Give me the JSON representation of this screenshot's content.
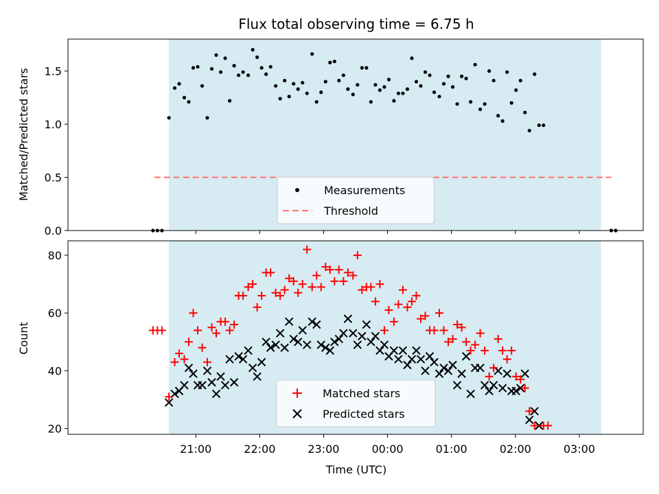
{
  "colors": {
    "shade": "#add8e6",
    "measurement": "#000000",
    "threshold": "#ff7070",
    "matched": "#ff0000",
    "predicted": "#000000"
  },
  "x_axis": {
    "label": "Time (UTC)",
    "ticks": [
      "21:00",
      "22:00",
      "23:00",
      "00:00",
      "01:00",
      "02:00",
      "03:00"
    ]
  },
  "chart_data": [
    {
      "type": "scatter",
      "title": "Flux total observing time = 6.75 h",
      "xlabel": "",
      "ylabel": "Matched/Predicted stars",
      "x_unit": "hours after 20:00 UTC",
      "xlim": [
        -1.0,
        8.0
      ],
      "ylim": [
        0.0,
        1.8
      ],
      "yticks": [
        "0.0",
        "0.5",
        "1.0",
        "1.5"
      ],
      "shaded_span": [
        0.58,
        7.34
      ],
      "threshold": 0.5,
      "threshold_span": [
        0.35,
        7.5
      ],
      "legend": [
        "Measurements",
        "Threshold"
      ],
      "series": [
        {
          "name": "Measurements",
          "values": [
            [
              0.33,
              0.0
            ],
            [
              0.4,
              0.0
            ],
            [
              0.47,
              0.0
            ],
            [
              0.58,
              1.06
            ],
            [
              0.67,
              1.34
            ],
            [
              0.74,
              1.38
            ],
            [
              0.82,
              1.25
            ],
            [
              0.89,
              1.21
            ],
            [
              0.96,
              1.53
            ],
            [
              1.03,
              1.54
            ],
            [
              1.1,
              1.36
            ],
            [
              1.18,
              1.06
            ],
            [
              1.25,
              1.52
            ],
            [
              1.32,
              1.65
            ],
            [
              1.39,
              1.49
            ],
            [
              1.46,
              1.62
            ],
            [
              1.53,
              1.22
            ],
            [
              1.6,
              1.55
            ],
            [
              1.67,
              1.46
            ],
            [
              1.74,
              1.49
            ],
            [
              1.82,
              1.46
            ],
            [
              1.89,
              1.7
            ],
            [
              1.96,
              1.63
            ],
            [
              2.03,
              1.53
            ],
            [
              2.1,
              1.47
            ],
            [
              2.17,
              1.54
            ],
            [
              2.25,
              1.36
            ],
            [
              2.32,
              1.24
            ],
            [
              2.39,
              1.41
            ],
            [
              2.46,
              1.26
            ],
            [
              2.53,
              1.38
            ],
            [
              2.6,
              1.33
            ],
            [
              2.67,
              1.39
            ],
            [
              2.74,
              1.29
            ],
            [
              2.82,
              1.66
            ],
            [
              2.89,
              1.21
            ],
            [
              2.96,
              1.3
            ],
            [
              3.03,
              1.4
            ],
            [
              3.1,
              1.58
            ],
            [
              3.17,
              1.59
            ],
            [
              3.24,
              1.41
            ],
            [
              3.31,
              1.46
            ],
            [
              3.38,
              1.33
            ],
            [
              3.46,
              1.28
            ],
            [
              3.53,
              1.37
            ],
            [
              3.6,
              1.53
            ],
            [
              3.67,
              1.53
            ],
            [
              3.74,
              1.21
            ],
            [
              3.81,
              1.37
            ],
            [
              3.88,
              1.32
            ],
            [
              3.95,
              1.35
            ],
            [
              4.02,
              1.42
            ],
            [
              4.1,
              1.22
            ],
            [
              4.17,
              1.29
            ],
            [
              4.24,
              1.29
            ],
            [
              4.31,
              1.33
            ],
            [
              4.38,
              1.62
            ],
            [
              4.45,
              1.4
            ],
            [
              4.52,
              1.36
            ],
            [
              4.59,
              1.49
            ],
            [
              4.66,
              1.46
            ],
            [
              4.73,
              1.3
            ],
            [
              4.81,
              1.26
            ],
            [
              4.88,
              1.38
            ],
            [
              4.95,
              1.45
            ],
            [
              5.02,
              1.35
            ],
            [
              5.09,
              1.19
            ],
            [
              5.16,
              1.45
            ],
            [
              5.23,
              1.43
            ],
            [
              5.3,
              1.21
            ],
            [
              5.37,
              1.56
            ],
            [
              5.45,
              1.14
            ],
            [
              5.52,
              1.19
            ],
            [
              5.59,
              1.5
            ],
            [
              5.66,
              1.41
            ],
            [
              5.73,
              1.08
            ],
            [
              5.8,
              1.03
            ],
            [
              5.87,
              1.49
            ],
            [
              5.94,
              1.2
            ],
            [
              6.01,
              1.32
            ],
            [
              6.08,
              1.41
            ],
            [
              6.15,
              1.11
            ],
            [
              6.22,
              0.94
            ],
            [
              6.3,
              1.47
            ],
            [
              6.37,
              0.99
            ],
            [
              6.44,
              0.99
            ],
            [
              7.5,
              0.0
            ],
            [
              7.57,
              0.0
            ]
          ]
        },
        {
          "name": "Threshold",
          "values": [
            [
              0.35,
              0.5
            ],
            [
              7.5,
              0.5
            ]
          ]
        }
      ]
    },
    {
      "type": "scatter",
      "title": "",
      "xlabel": "Time (UTC)",
      "ylabel": "Count",
      "x_unit": "hours after 20:00 UTC",
      "xlim": [
        -1.0,
        8.0
      ],
      "ylim": [
        18,
        85
      ],
      "yticks": [
        "20",
        "40",
        "60",
        "80"
      ],
      "shaded_span": [
        0.58,
        7.34
      ],
      "legend": [
        "Matched stars",
        "Predicted stars"
      ],
      "series": [
        {
          "name": "Matched stars",
          "values": [
            [
              0.33,
              54
            ],
            [
              0.4,
              54
            ],
            [
              0.47,
              54
            ],
            [
              0.58,
              31
            ],
            [
              0.67,
              43
            ],
            [
              0.74,
              46
            ],
            [
              0.82,
              44
            ],
            [
              0.89,
              50
            ],
            [
              0.96,
              60
            ],
            [
              1.03,
              54
            ],
            [
              1.1,
              48
            ],
            [
              1.18,
              43
            ],
            [
              1.25,
              55
            ],
            [
              1.32,
              53
            ],
            [
              1.39,
              57
            ],
            [
              1.46,
              57
            ],
            [
              1.53,
              54
            ],
            [
              1.6,
              56
            ],
            [
              1.67,
              66
            ],
            [
              1.74,
              66
            ],
            [
              1.82,
              69
            ],
            [
              1.89,
              70
            ],
            [
              1.96,
              62
            ],
            [
              2.03,
              66
            ],
            [
              2.1,
              74
            ],
            [
              2.17,
              74
            ],
            [
              2.25,
              67
            ],
            [
              2.32,
              66
            ],
            [
              2.39,
              68
            ],
            [
              2.46,
              72
            ],
            [
              2.53,
              71
            ],
            [
              2.6,
              67
            ],
            [
              2.67,
              70
            ],
            [
              2.74,
              82
            ],
            [
              2.82,
              69
            ],
            [
              2.89,
              73
            ],
            [
              2.96,
              69
            ],
            [
              3.03,
              76
            ],
            [
              3.1,
              75
            ],
            [
              3.17,
              71
            ],
            [
              3.24,
              75
            ],
            [
              3.31,
              71
            ],
            [
              3.38,
              74
            ],
            [
              3.46,
              73
            ],
            [
              3.53,
              80
            ],
            [
              3.6,
              68
            ],
            [
              3.67,
              69
            ],
            [
              3.74,
              69
            ],
            [
              3.81,
              64
            ],
            [
              3.88,
              70
            ],
            [
              3.95,
              54
            ],
            [
              4.02,
              61
            ],
            [
              4.1,
              57
            ],
            [
              4.17,
              63
            ],
            [
              4.24,
              68
            ],
            [
              4.31,
              62
            ],
            [
              4.38,
              64
            ],
            [
              4.45,
              66
            ],
            [
              4.52,
              58
            ],
            [
              4.59,
              59
            ],
            [
              4.66,
              54
            ],
            [
              4.73,
              54
            ],
            [
              4.81,
              60
            ],
            [
              4.88,
              54
            ],
            [
              4.95,
              50
            ],
            [
              5.02,
              51
            ],
            [
              5.09,
              56
            ],
            [
              5.16,
              55
            ],
            [
              5.23,
              50
            ],
            [
              5.3,
              47
            ],
            [
              5.37,
              49
            ],
            [
              5.45,
              53
            ],
            [
              5.52,
              47
            ],
            [
              5.59,
              38
            ],
            [
              5.66,
              41
            ],
            [
              5.73,
              51
            ],
            [
              5.8,
              47
            ],
            [
              5.87,
              44
            ],
            [
              5.94,
              47
            ],
            [
              6.01,
              38
            ],
            [
              6.08,
              37
            ],
            [
              6.15,
              34
            ],
            [
              6.22,
              26
            ],
            [
              6.3,
              21
            ],
            [
              6.44,
              21
            ],
            [
              6.51,
              21
            ]
          ]
        },
        {
          "name": "Predicted stars",
          "values": [
            [
              0.58,
              29
            ],
            [
              0.67,
              32
            ],
            [
              0.74,
              33
            ],
            [
              0.82,
              35
            ],
            [
              0.89,
              41
            ],
            [
              0.96,
              39
            ],
            [
              1.03,
              35
            ],
            [
              1.1,
              35
            ],
            [
              1.18,
              40
            ],
            [
              1.25,
              36
            ],
            [
              1.32,
              32
            ],
            [
              1.39,
              38
            ],
            [
              1.46,
              35
            ],
            [
              1.53,
              44
            ],
            [
              1.6,
              36
            ],
            [
              1.67,
              45
            ],
            [
              1.74,
              44
            ],
            [
              1.82,
              47
            ],
            [
              1.89,
              41
            ],
            [
              1.96,
              38
            ],
            [
              2.03,
              43
            ],
            [
              2.1,
              50
            ],
            [
              2.17,
              48
            ],
            [
              2.25,
              49
            ],
            [
              2.32,
              53
            ],
            [
              2.39,
              48
            ],
            [
              2.46,
              57
            ],
            [
              2.53,
              51
            ],
            [
              2.6,
              50
            ],
            [
              2.67,
              54
            ],
            [
              2.74,
              49
            ],
            [
              2.82,
              57
            ],
            [
              2.89,
              56
            ],
            [
              2.96,
              49
            ],
            [
              3.03,
              48
            ],
            [
              3.1,
              47
            ],
            [
              3.17,
              50
            ],
            [
              3.24,
              51
            ],
            [
              3.31,
              53
            ],
            [
              3.38,
              58
            ],
            [
              3.46,
              53
            ],
            [
              3.53,
              49
            ],
            [
              3.6,
              52
            ],
            [
              3.67,
              56
            ],
            [
              3.74,
              50
            ],
            [
              3.81,
              52
            ],
            [
              3.88,
              47
            ],
            [
              3.95,
              49
            ],
            [
              4.02,
              45
            ],
            [
              4.1,
              47
            ],
            [
              4.17,
              44
            ],
            [
              4.24,
              47
            ],
            [
              4.31,
              42
            ],
            [
              4.38,
              44
            ],
            [
              4.45,
              47
            ],
            [
              4.52,
              44
            ],
            [
              4.59,
              40
            ],
            [
              4.66,
              45
            ],
            [
              4.73,
              43
            ],
            [
              4.81,
              39
            ],
            [
              4.88,
              41
            ],
            [
              4.95,
              40
            ],
            [
              5.02,
              42
            ],
            [
              5.09,
              35
            ],
            [
              5.16,
              39
            ],
            [
              5.23,
              45
            ],
            [
              5.3,
              32
            ],
            [
              5.37,
              41
            ],
            [
              5.45,
              41
            ],
            [
              5.52,
              35
            ],
            [
              5.59,
              33
            ],
            [
              5.66,
              35
            ],
            [
              5.73,
              40
            ],
            [
              5.8,
              34
            ],
            [
              5.87,
              39
            ],
            [
              5.94,
              33
            ],
            [
              6.01,
              33
            ],
            [
              6.08,
              34
            ],
            [
              6.15,
              39
            ],
            [
              6.22,
              23
            ],
            [
              6.3,
              26
            ],
            [
              6.37,
              21
            ]
          ]
        }
      ]
    }
  ]
}
